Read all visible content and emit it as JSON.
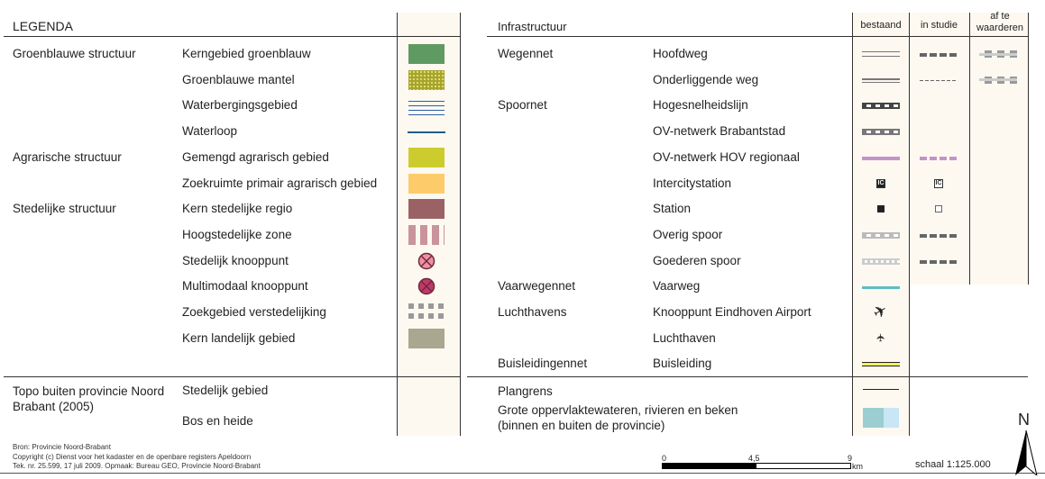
{
  "left": {
    "title": "LEGENDA",
    "groups": [
      {
        "label": "Groenblauwe structuur",
        "row": 0
      },
      {
        "label": "Agrarische structuur",
        "row": 4
      },
      {
        "label": "Stedelijke structuur",
        "row": 6
      }
    ],
    "items": [
      {
        "label": "Kerngebied groenblauw",
        "symbol": "fill",
        "color": "#5f9a62"
      },
      {
        "label": "Groenblauwe mantel",
        "symbol": "dotted-fill",
        "color": "#a7a22e"
      },
      {
        "label": "Waterbergingsgebied",
        "symbol": "blue-lines",
        "color": "#2a5fa8"
      },
      {
        "label": "Waterloop",
        "symbol": "line",
        "color": "#245b86"
      },
      {
        "label": "Gemengd agrarisch gebied",
        "symbol": "fill",
        "color": "#cccc2e"
      },
      {
        "label": "Zoekruimte primair agrarisch gebied",
        "symbol": "fill",
        "color": "#fdcb6a"
      },
      {
        "label": "Kern stedelijke regio",
        "symbol": "fill",
        "color": "#9b6265"
      },
      {
        "label": "Hoogstedelijke zone",
        "symbol": "stripes",
        "color": "#c9949b"
      },
      {
        "label": "Stedelijk knooppunt",
        "symbol": "cross-circle",
        "color": "#f08fa3"
      },
      {
        "label": "Multimodaal knooppunt",
        "symbol": "cross-circle",
        "color": "#c2386b"
      },
      {
        "label": "Zoekgebied verstedelijking",
        "symbol": "squares",
        "color": "#999999"
      },
      {
        "label": "Kern landelijk gebied",
        "symbol": "fill",
        "color": "#a8a78f"
      }
    ],
    "topo": {
      "group": "Topo buiten provincie Noord Brabant (2005)",
      "items": [
        {
          "label": "Stedelijk gebied",
          "symbol": "fill",
          "color": "#d9d9d9"
        },
        {
          "label": "Bos en heide",
          "symbol": "fill",
          "color": "#a8a78f"
        }
      ]
    }
  },
  "right": {
    "title": "Infrastructuur",
    "columns": [
      "bestaand",
      "in studie",
      "af te waarderen"
    ],
    "groups": [
      {
        "label": "Wegennet",
        "row": 0
      },
      {
        "label": "Spoornet",
        "row": 2
      },
      {
        "label": "Vaarwegennet",
        "row": 9
      },
      {
        "label": "Luchthavens",
        "row": 10
      },
      {
        "label": "Buisleidingennet",
        "row": 12
      }
    ],
    "items": [
      {
        "label": "Hoofdweg",
        "bestaand": "double-thin",
        "in_studie": "dash-thick",
        "af_te_waarderen": "dash-grey"
      },
      {
        "label": "Onderliggende weg",
        "bestaand": "double",
        "in_studie": "dash-thin",
        "af_te_waarderen": "dash-grey"
      },
      {
        "label": "Hogesnelheidslijn",
        "bestaand": "rail-dark"
      },
      {
        "label": "OV-netwerk Brabantstad",
        "bestaand": "rail-mid"
      },
      {
        "label": "OV-netwerk HOV regionaal",
        "bestaand": "purple-line",
        "in_studie": "purple-dash"
      },
      {
        "label": "Intercitystation",
        "bestaand": "ic-filled",
        "in_studie": "ic-open",
        "ic_text": "IC"
      },
      {
        "label": "Station",
        "bestaand": "sq-filled",
        "in_studie": "sq-open"
      },
      {
        "label": "Overig spoor",
        "bestaand": "rail-light",
        "in_studie": "dash-thick"
      },
      {
        "label": "Goederen spoor",
        "bestaand": "rail-lighter",
        "in_studie": "dash-thick"
      },
      {
        "label": "Vaarweg",
        "bestaand": "cyan-line"
      },
      {
        "label": "Knooppunt Eindhoven Airport",
        "bestaand": "plane",
        "glyph": "✈"
      },
      {
        "label": "Luchthaven",
        "bestaand": "small-plane",
        "glyph": "✈"
      },
      {
        "label": "Buisleiding",
        "bestaand": "pipe"
      }
    ],
    "bottom": [
      {
        "label": "Plangrens",
        "symbol": "plangrens"
      },
      {
        "label": "Grote oppervlaktewateren, rivieren en beken",
        "label2": "(binnen en buiten de provincie)",
        "symbol": "water",
        "colors": [
          "#9ccdd1",
          "#c8e6f6"
        ]
      }
    ]
  },
  "footer": {
    "source": "Bron: Provincie Noord-Brabant",
    "copyright": "Copyright (c) Dienst voor het kadaster en de openbare registers Apeldoorn",
    "tek": "Tek. nr. 25.599, 17 juli 2009. Opmaak: Bureau GEO, Provincie Noord-Brabant",
    "scalebar": {
      "ticks": [
        "0",
        "4,5",
        "9"
      ],
      "unit": "km"
    },
    "scale": "schaal 1:125.000",
    "north": "N"
  }
}
